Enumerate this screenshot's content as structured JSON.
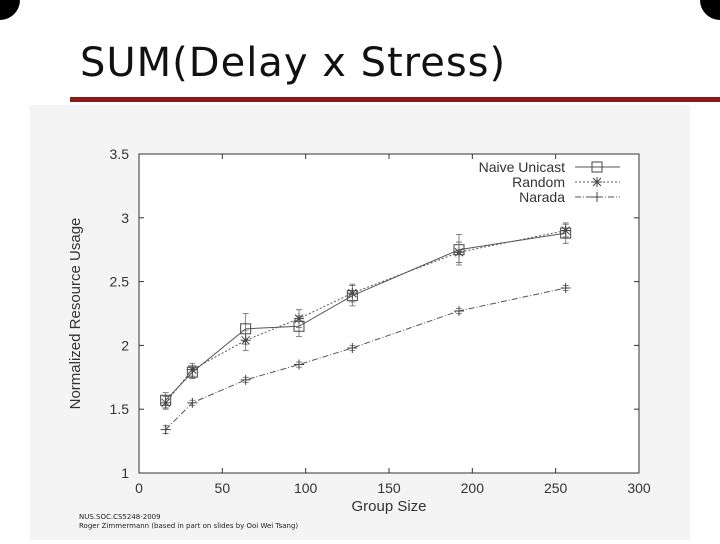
{
  "slide": {
    "title": "SUM(Delay x Stress)",
    "footer_line1": "NUS.SOC.CS5248-2009",
    "footer_line2": "Roger Zimmermann (based in part on slides by Ooi Wei Tsang)"
  },
  "colors": {
    "accent": "#8b1a1a"
  },
  "chart_data": {
    "type": "line",
    "title": "",
    "xlabel": "Group Size",
    "ylabel": "Normalized Resource Usage",
    "xlim": [
      0,
      300
    ],
    "ylim": [
      1,
      3.5
    ],
    "xticks": [
      0,
      50,
      100,
      150,
      200,
      250,
      300
    ],
    "yticks": [
      1,
      1.5,
      2,
      2.5,
      3,
      3.5
    ],
    "x": [
      16,
      32,
      64,
      96,
      128,
      192,
      256
    ],
    "grid": false,
    "legend_position": "top-right",
    "series": [
      {
        "name": "Naive Unicast",
        "marker": "square",
        "dash": "",
        "values": [
          1.57,
          1.79,
          2.13,
          2.15,
          2.39,
          2.75,
          2.88
        ],
        "err": [
          0.06,
          0.05,
          0.12,
          0.08,
          0.08,
          0.12,
          0.08
        ]
      },
      {
        "name": "Random",
        "marker": "star",
        "dash": "2,2",
        "values": [
          1.55,
          1.81,
          2.04,
          2.21,
          2.41,
          2.73,
          2.9
        ],
        "err": [
          0.05,
          0.05,
          0.08,
          0.07,
          0.07,
          0.08,
          0.05
        ]
      },
      {
        "name": "Narada",
        "marker": "plus",
        "dash": "6,2,1,2",
        "values": [
          1.34,
          1.55,
          1.73,
          1.85,
          1.98,
          2.27,
          2.45
        ],
        "err": [
          0.03,
          0.02,
          0.02,
          0.02,
          0.02,
          0.02,
          0.02
        ]
      }
    ]
  }
}
